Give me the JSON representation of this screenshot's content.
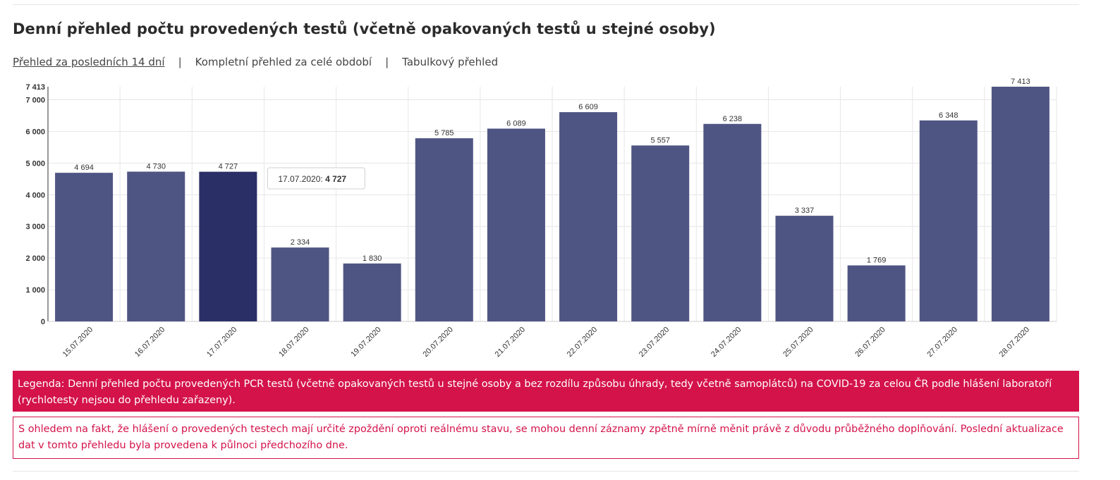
{
  "header": {
    "title": "Denní přehled počtu provedených testů (včetně opakovaných testů u stejné osoby)"
  },
  "tabs": [
    {
      "label": "Přehled za posledních 14 dní",
      "active": true
    },
    {
      "label": "Kompletní přehled za celé období",
      "active": false
    },
    {
      "label": "Tabulkový přehled",
      "active": false
    }
  ],
  "tab_separator": "|",
  "chart_data": {
    "type": "bar",
    "categories": [
      "15.07.2020",
      "16.07.2020",
      "17.07.2020",
      "18.07.2020",
      "19.07.2020",
      "20.07.2020",
      "21.07.2020",
      "22.07.2020",
      "23.07.2020",
      "24.07.2020",
      "25.07.2020",
      "26.07.2020",
      "27.07.2020",
      "28.07.2020"
    ],
    "values": [
      4694,
      4730,
      4727,
      2334,
      1830,
      5785,
      6089,
      6609,
      5557,
      6238,
      3337,
      1769,
      6348,
      7413
    ],
    "value_labels": [
      "4 694",
      "4 730",
      "4 727",
      "2 334",
      "1 830",
      "5 785",
      "6 089",
      "6 609",
      "5 557",
      "6 238",
      "3 337",
      "1 769",
      "6 348",
      "7 413"
    ],
    "y_ticks": [
      0,
      1000,
      2000,
      3000,
      4000,
      5000,
      6000,
      7000
    ],
    "y_tick_labels": [
      "0",
      "1 000",
      "2 000",
      "3 000",
      "4 000",
      "5 000",
      "6 000",
      "7 000"
    ],
    "y_max_label": "7 413",
    "ylim": [
      0,
      7413
    ],
    "grid": true,
    "highlighted_index": 2,
    "colors": {
      "bar": "#4f5583",
      "bar_highlight": "#2a3066",
      "grid": "#e6e6e6",
      "axis": "#333333"
    },
    "tooltip": {
      "date": "17.07.2020",
      "separator": ": ",
      "value": "4 727"
    }
  },
  "legend": {
    "text": "Legenda: Denní přehled počtu provedených PCR testů (včetně opakovaných testů u stejné osoby a bez rozdílu způsobu úhrady, tedy včetně samoplátců) na COVID-19 za celou ČR podle hlášení laboratoří (rychlotesty nejsou do přehledu zařazeny).",
    "background": "#d4134a"
  },
  "note": {
    "text": "S ohledem na fakt, že hlášení o provedených testech mají určité zpoždění oproti reálnému stavu, se mohou denní záznamy zpětně mírně měnit právě z důvodu průběžného doplňování. Poslední aktualizace dat v tomto přehledu byla provedena k půlnoci předchozího dne."
  }
}
